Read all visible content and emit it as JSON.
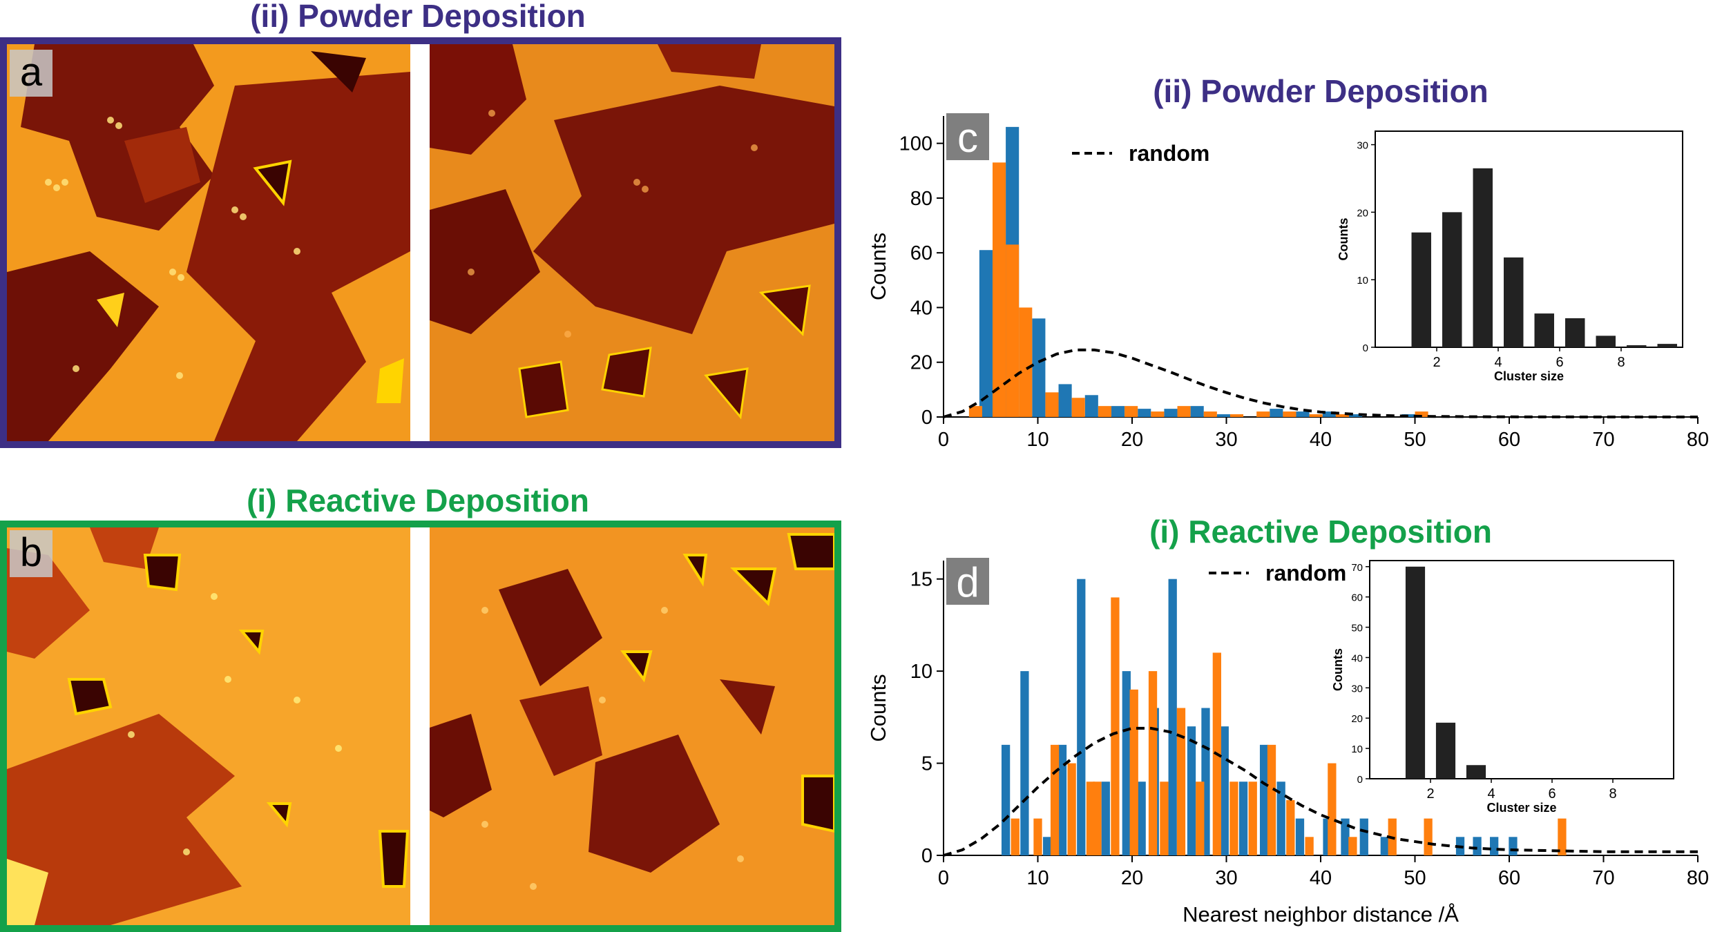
{
  "panel_a": {
    "title": "(ii) Powder Deposition",
    "letter": "a",
    "frame_color": "#3d2f85",
    "title_color": "#3d2f85"
  },
  "panel_b": {
    "title": "(i) Reactive Deposition",
    "letter": "b",
    "frame_color": "#14a14a",
    "title_color": "#14a14a"
  },
  "series_colors": {
    "blue": "#1f77b4",
    "orange": "#ff7f0e",
    "inset": "#222222",
    "random": "#000000"
  },
  "chart_data": [
    {
      "id": "c",
      "type": "bar",
      "title": "(ii) Powder Deposition",
      "title_color": "#3d2f85",
      "panel_letter": "c",
      "xlabel": "",
      "ylabel": "Counts",
      "xlim": [
        0,
        80
      ],
      "ylim": [
        0,
        110
      ],
      "xticks": [
        0,
        10,
        20,
        30,
        40,
        50,
        60,
        70,
        80
      ],
      "yticks": [
        0,
        20,
        40,
        60,
        80,
        100
      ],
      "bin_width": 1.4,
      "legend": "random",
      "series": [
        {
          "color": "blue",
          "x": [
            4.5,
            7.3,
            10.1,
            12.9,
            15.7,
            18.5,
            21.3,
            24.1,
            26.9,
            29.7,
            32.5,
            35.3,
            38.1,
            40.9,
            43.7,
            46.5,
            49.3,
            52.1
          ],
          "values": [
            61,
            106,
            36,
            12,
            8,
            4,
            3,
            3,
            4,
            1,
            0,
            3,
            2,
            2,
            1,
            0,
            1,
            0
          ]
        },
        {
          "color": "orange",
          "x": [
            3.4,
            5.9,
            7.3,
            8.7,
            11.5,
            14.3,
            17.1,
            19.9,
            22.7,
            25.5,
            28.3,
            31.1,
            33.9,
            36.7,
            39.5,
            42.3,
            45.1,
            47.9,
            50.7
          ],
          "values": [
            4,
            93,
            63,
            40,
            9,
            7,
            4,
            4,
            2,
            4,
            2,
            1,
            2,
            2,
            1,
            1,
            0,
            0,
            2
          ]
        }
      ],
      "random_curve": {
        "x": [
          0,
          2,
          4,
          6,
          8,
          10,
          12,
          14,
          16,
          18,
          20,
          22,
          24,
          26,
          28,
          30,
          32,
          34,
          36,
          38,
          40,
          44,
          48,
          52,
          56,
          60,
          70,
          80
        ],
        "y": [
          0,
          2,
          6,
          11,
          16,
          20,
          23,
          24.5,
          24.5,
          23.5,
          21.5,
          19,
          16.5,
          13.8,
          11.2,
          8.9,
          6.8,
          5.1,
          3.7,
          2.6,
          1.8,
          0.9,
          0.4,
          0.2,
          0.1,
          0.05,
          0,
          0
        ]
      },
      "inset": {
        "xlabel": "Cluster size",
        "ylabel": "Counts",
        "xlim": [
          0,
          10
        ],
        "ylim": [
          0,
          32
        ],
        "xticks": [
          2,
          4,
          6,
          8
        ],
        "yticks": [
          0,
          10,
          20,
          30
        ],
        "x": [
          1.5,
          2.5,
          3.5,
          4.5,
          5.5,
          6.5,
          7.5,
          8.5,
          9.5
        ],
        "values": [
          17,
          20,
          26.5,
          13.3,
          5,
          4.3,
          1.7,
          0.3,
          0.5
        ]
      }
    },
    {
      "id": "d",
      "type": "bar",
      "title": "(i) Reactive Deposition",
      "title_color": "#14a14a",
      "panel_letter": "d",
      "xlabel": "Nearest neighbor distance /Å",
      "ylabel": "Counts",
      "xlim": [
        0,
        80
      ],
      "ylim": [
        0,
        16
      ],
      "xticks": [
        0,
        10,
        20,
        30,
        40,
        50,
        60,
        70,
        80
      ],
      "yticks": [
        0,
        5,
        10,
        15
      ],
      "bin_width": 0.9,
      "legend": "random",
      "series": [
        {
          "color": "blue",
          "x": [
            6.6,
            8.6,
            11.0,
            12.6,
            14.6,
            17.2,
            19.4,
            21.0,
            22.4,
            24.3,
            26.3,
            27.8,
            29.8,
            31.8,
            34.0,
            35.8,
            37.8,
            40.7,
            42.6,
            44.6,
            46.8,
            51.4,
            54.8,
            56.6,
            58.4,
            60.4
          ],
          "values": [
            6,
            10,
            1,
            6,
            15,
            4,
            10,
            4,
            8,
            15,
            7,
            8,
            7,
            4,
            6,
            4,
            2,
            2,
            2,
            2,
            1,
            0,
            1,
            1,
            1,
            1
          ]
        },
        {
          "color": "orange",
          "x": [
            7.6,
            10.0,
            11.8,
            13.6,
            15.6,
            16.3,
            18.2,
            20.2,
            22.2,
            23.4,
            25.2,
            27.2,
            29.0,
            30.8,
            32.8,
            34.8,
            36.8,
            38.8,
            41.2,
            43.4,
            47.6,
            51.4,
            57.0,
            65.6
          ],
          "values": [
            2,
            2,
            6,
            5,
            4,
            4,
            14,
            9,
            10,
            4,
            8,
            4,
            11,
            4,
            4,
            6,
            3,
            1,
            5,
            1,
            2,
            2,
            0,
            2
          ]
        }
      ],
      "random_curve": {
        "x": [
          0,
          2,
          4,
          6,
          8,
          10,
          12,
          14,
          16,
          18,
          20,
          22,
          24,
          26,
          28,
          30,
          32,
          34,
          36,
          38,
          40,
          44,
          48,
          52,
          56,
          60,
          70,
          80
        ],
        "y": [
          0,
          0.3,
          0.9,
          1.7,
          2.7,
          3.7,
          4.6,
          5.4,
          6.1,
          6.6,
          6.9,
          6.9,
          6.7,
          6.3,
          5.8,
          5.2,
          4.6,
          3.9,
          3.3,
          2.7,
          2.2,
          1.4,
          0.9,
          0.6,
          0.4,
          0.3,
          0.2,
          0.2
        ]
      },
      "inset": {
        "xlabel": "Cluster size",
        "ylabel": "Counts",
        "xlim": [
          0,
          10
        ],
        "ylim": [
          0,
          72
        ],
        "xticks": [
          2,
          4,
          6,
          8
        ],
        "yticks": [
          0,
          10,
          20,
          30,
          40,
          50,
          60,
          70
        ],
        "x": [
          1.5,
          2.5,
          3.5
        ],
        "values": [
          70,
          18.5,
          4.5
        ]
      }
    }
  ]
}
